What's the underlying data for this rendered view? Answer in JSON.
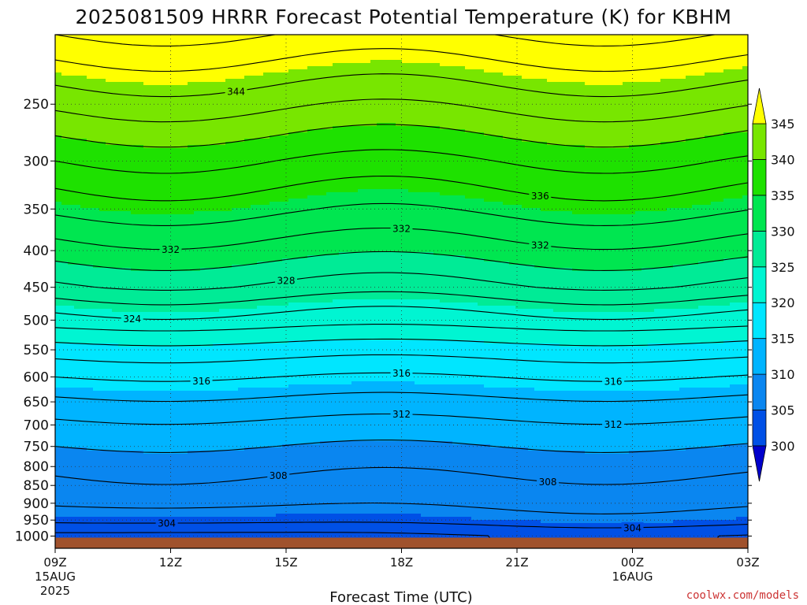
{
  "chart_data": {
    "type": "heatmap",
    "title": "2025081509 HRRR Forecast Potential Temperature (K) for KBHM",
    "xlabel": "Forecast Time (UTC)",
    "ylabel": "",
    "x_ticks": [
      {
        "label": "09Z",
        "sub": [
          "15AUG",
          "2025"
        ],
        "hour": 0
      },
      {
        "label": "12Z",
        "sub": [],
        "hour": 3
      },
      {
        "label": "15Z",
        "sub": [],
        "hour": 6
      },
      {
        "label": "18Z",
        "sub": [],
        "hour": 9
      },
      {
        "label": "21Z",
        "sub": [],
        "hour": 12
      },
      {
        "label": "00Z",
        "sub": [
          "16AUG"
        ],
        "hour": 15
      },
      {
        "label": "03Z",
        "sub": [],
        "hour": 18
      }
    ],
    "y_ticks": [
      "250",
      "300",
      "350",
      "400",
      "450",
      "500",
      "550",
      "600",
      "650",
      "700",
      "750",
      "800",
      "850",
      "900",
      "950",
      "1000"
    ],
    "y_levels": [
      250,
      300,
      350,
      400,
      450,
      500,
      550,
      600,
      650,
      700,
      750,
      800,
      850,
      900,
      950,
      1000
    ],
    "y_scale": "log-pressure",
    "ylim_hpa": [
      1040,
      200
    ],
    "xlim_hours": [
      0,
      18
    ],
    "grid": true,
    "colorbar": {
      "labels": [
        "345",
        "340",
        "335",
        "330",
        "325",
        "320",
        "315",
        "310",
        "305",
        "300"
      ],
      "levels": [
        300,
        305,
        310,
        315,
        320,
        325,
        330,
        335,
        340,
        345
      ],
      "colors": [
        "#0000cc",
        "#0050e6",
        "#0a86f0",
        "#00b4ff",
        "#00e6ff",
        "#00f5d2",
        "#00eb96",
        "#00e650",
        "#1ee100",
        "#78e600",
        "#b4f000",
        "#e6f500",
        "#ffff00"
      ],
      "extend": "both"
    },
    "contour_interval_k": 2,
    "contour_labels": [
      "344",
      "336",
      "332",
      "332",
      "332",
      "328",
      "324",
      "316",
      "316",
      "316",
      "312",
      "312",
      "308",
      "308",
      "304",
      "304"
    ],
    "terrain_color": "#a0522d",
    "theta_profile": [
      {
        "p": 1000,
        "theta": 302
      },
      {
        "p": 950,
        "theta": 305
      },
      {
        "p": 900,
        "theta": 306.5
      },
      {
        "p": 850,
        "theta": 307.5
      },
      {
        "p": 800,
        "theta": 308.5
      },
      {
        "p": 750,
        "theta": 310
      },
      {
        "p": 700,
        "theta": 311.5
      },
      {
        "p": 650,
        "theta": 313.5
      },
      {
        "p": 600,
        "theta": 316
      },
      {
        "p": 550,
        "theta": 319
      },
      {
        "p": 500,
        "theta": 323
      },
      {
        "p": 450,
        "theta": 327.5
      },
      {
        "p": 400,
        "theta": 331
      },
      {
        "p": 350,
        "theta": 334.5
      },
      {
        "p": 300,
        "theta": 338
      },
      {
        "p": 250,
        "theta": 342.5
      },
      {
        "p": 200,
        "theta": 348
      }
    ]
  },
  "credit": "coolwx.com/models"
}
